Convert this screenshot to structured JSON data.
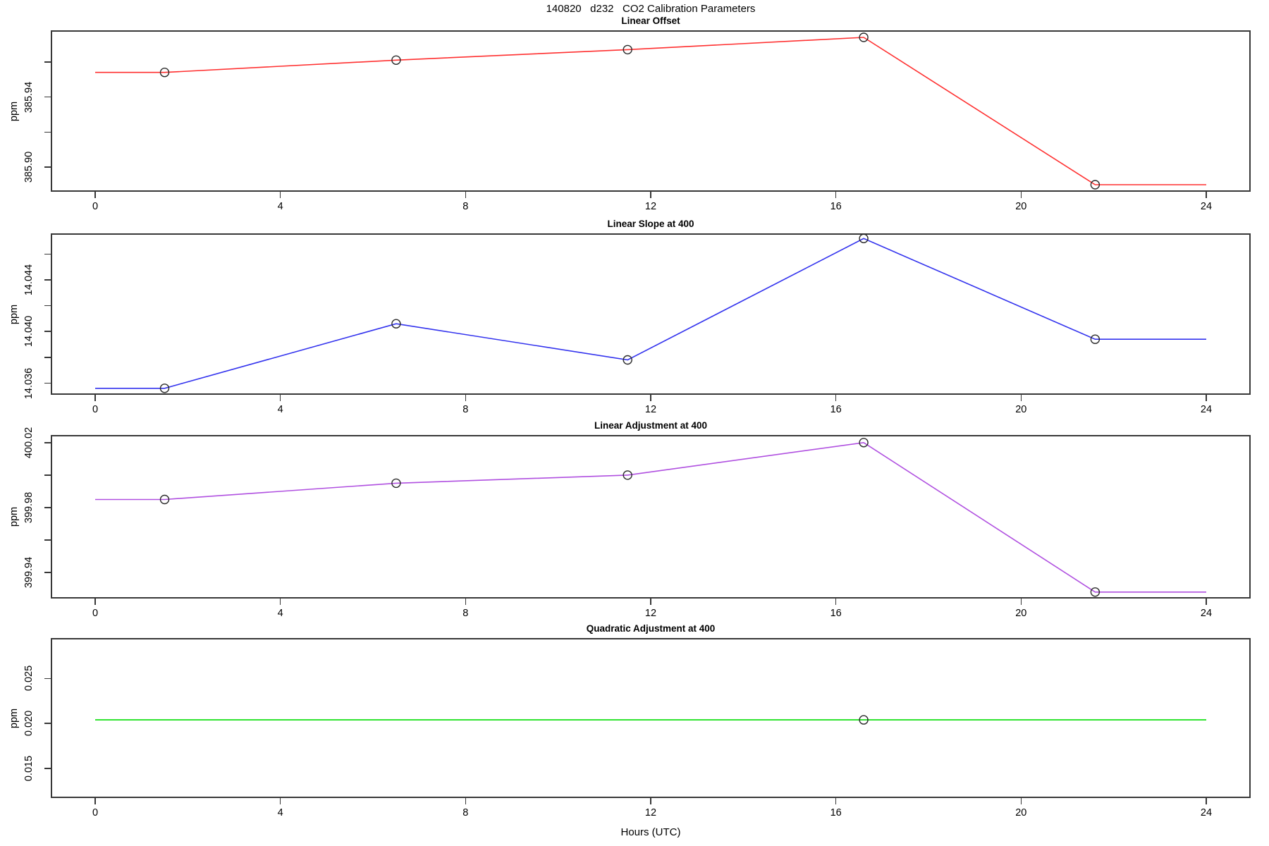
{
  "title": "140820   d232   CO2 Calibration Parameters",
  "xaxis_title": "Hours (UTC)",
  "chart_data": {
    "type": "line",
    "xlabel": "Hours (UTC)",
    "xticks": [
      0,
      4,
      8,
      12,
      16,
      20,
      24
    ],
    "xlim": [
      -0.96,
      24.96
    ],
    "grid": false,
    "legend": "none",
    "panels": [
      {
        "title": "Linear Offset",
        "ylabel": "ppm",
        "color": "#ff3030",
        "ylim": [
          385.886,
          385.978
        ],
        "yticks": [
          {
            "v": 385.96,
            "label": ""
          },
          {
            "v": 385.94,
            "label": "385.94"
          },
          {
            "v": 385.92,
            "label": ""
          },
          {
            "v": 385.9,
            "label": "385.90"
          }
        ],
        "x": [
          0,
          1.5,
          6.5,
          11.5,
          16.6,
          21.6,
          24
        ],
        "y": [
          385.954,
          385.954,
          385.961,
          385.967,
          385.974,
          385.89,
          385.89
        ],
        "markers": {
          "x": [
            1.5,
            6.5,
            11.5,
            16.6,
            21.6
          ],
          "y": [
            385.954,
            385.961,
            385.967,
            385.974,
            385.89
          ]
        }
      },
      {
        "title": "Linear Slope at 400",
        "ylabel": "ppm",
        "color": "#3333ee",
        "ylim": [
          14.0351,
          14.0476
        ],
        "yticks": [
          {
            "v": 14.046,
            "label": ""
          },
          {
            "v": 14.044,
            "label": "14.044"
          },
          {
            "v": 14.042,
            "label": ""
          },
          {
            "v": 14.04,
            "label": "14.040"
          },
          {
            "v": 14.038,
            "label": ""
          },
          {
            "v": 14.036,
            "label": "14.036"
          }
        ],
        "x": [
          0,
          1.5,
          6.5,
          11.5,
          16.6,
          21.6,
          24
        ],
        "y": [
          14.0356,
          14.0356,
          14.0406,
          14.0378,
          14.0472,
          14.0394,
          14.0394
        ],
        "markers": {
          "x": [
            1.5,
            6.5,
            11.5,
            16.6,
            21.6
          ],
          "y": [
            14.0356,
            14.0406,
            14.0378,
            14.0472,
            14.0394
          ]
        }
      },
      {
        "title": "Linear Adjustment at 400",
        "ylabel": "ppm",
        "color": "#b050e0",
        "ylim": [
          399.924,
          400.0247
        ],
        "yticks": [
          {
            "v": 400.02,
            "label": "400.02"
          },
          {
            "v": 400.0,
            "label": ""
          },
          {
            "v": 399.98,
            "label": "399.98"
          },
          {
            "v": 399.96,
            "label": ""
          },
          {
            "v": 399.94,
            "label": "399.94"
          }
        ],
        "x": [
          0,
          1.5,
          6.5,
          11.5,
          16.6,
          21.6,
          24
        ],
        "y": [
          399.985,
          399.985,
          399.995,
          400.0,
          400.02,
          399.928,
          399.928
        ],
        "markers": {
          "x": [
            1.5,
            6.5,
            11.5,
            16.6,
            21.6
          ],
          "y": [
            399.985,
            399.995,
            400.0,
            400.02,
            399.928
          ]
        }
      },
      {
        "title": "Quadratic Adjustment at 400",
        "ylabel": "ppm",
        "color": "#00dd00",
        "ylim": [
          0.0117,
          0.0295
        ],
        "yticks": [
          {
            "v": 0.025,
            "label": "0.025"
          },
          {
            "v": 0.02,
            "label": "0.020"
          },
          {
            "v": 0.015,
            "label": "0.015"
          }
        ],
        "x": [
          0,
          24
        ],
        "y": [
          0.0204,
          0.0204
        ],
        "markers": {
          "x": [
            16.6
          ],
          "y": [
            0.0204
          ]
        }
      }
    ]
  }
}
